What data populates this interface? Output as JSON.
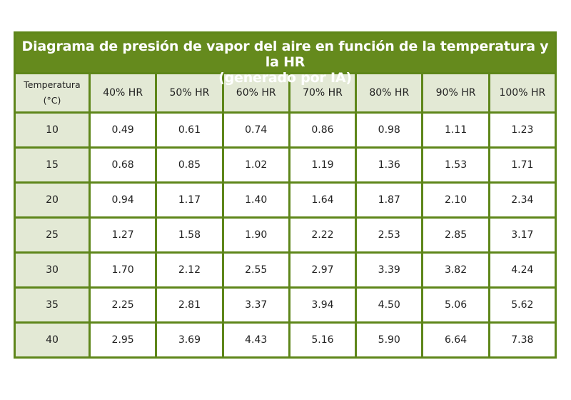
{
  "title_line1": "Diagrama de presión de vapor del aire en función de la temperatura y la HR",
  "title_line2": "(generado por IA)",
  "colors": {
    "header_green": "#658a1d",
    "border_green": "#5e861a",
    "label_bg": "#e3e9d5"
  },
  "chart_data": {
    "type": "table",
    "columns": [
      "Temperatura (°C)",
      "40% HR",
      "50% HR",
      "60% HR",
      "70% HR",
      "80% HR",
      "90% HR",
      "100% HR"
    ],
    "header_temp_line1": "Temperatura",
    "header_temp_line2": "(°C)",
    "rows": [
      [
        "10",
        "0.49",
        "0.61",
        "0.74",
        "0.86",
        "0.98",
        "1.11",
        "1.23"
      ],
      [
        "15",
        "0.68",
        "0.85",
        "1.02",
        "1.19",
        "1.36",
        "1.53",
        "1.71"
      ],
      [
        "20",
        "0.94",
        "1.17",
        "1.40",
        "1.64",
        "1.87",
        "2.10",
        "2.34"
      ],
      [
        "25",
        "1.27",
        "1.58",
        "1.90",
        "2.22",
        "2.53",
        "2.85",
        "3.17"
      ],
      [
        "30",
        "1.70",
        "2.12",
        "2.55",
        "2.97",
        "3.39",
        "3.82",
        "4.24"
      ],
      [
        "35",
        "2.25",
        "2.81",
        "3.37",
        "3.94",
        "4.50",
        "5.06",
        "5.62"
      ],
      [
        "40",
        "2.95",
        "3.69",
        "4.43",
        "5.16",
        "5.90",
        "6.64",
        "7.38"
      ]
    ]
  }
}
